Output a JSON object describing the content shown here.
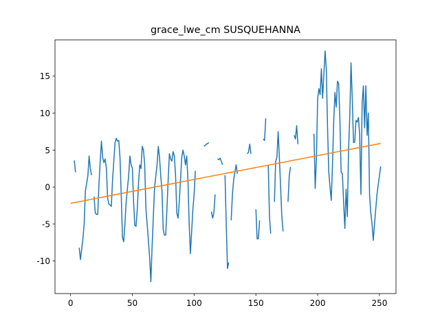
{
  "chart_data": {
    "type": "line",
    "title": "grace_lwe_cm SUSQUEHANNA",
    "xlim": [
      -12.6,
      263.4
    ],
    "ylim": [
      -14.4,
      19.9
    ],
    "xticks": [
      0,
      50,
      100,
      150,
      200,
      250
    ],
    "yticks": [
      -10,
      -5,
      0,
      5,
      10,
      15
    ],
    "series": [
      {
        "color": "#1f77b4",
        "x": [
          3,
          4,
          5,
          7,
          8,
          10,
          11,
          12,
          14,
          15,
          16,
          17,
          18,
          19,
          20,
          21,
          22,
          23,
          24,
          25,
          26,
          27,
          28,
          29,
          30,
          31,
          33,
          34,
          35,
          36,
          37,
          38,
          39,
          40,
          41,
          42,
          43,
          44,
          45,
          47,
          48,
          49,
          50,
          51,
          52,
          53,
          54,
          55,
          56,
          57,
          58,
          59,
          60,
          61,
          62,
          64,
          65,
          66,
          67,
          68,
          70,
          71,
          72,
          73,
          74,
          75,
          76,
          77,
          78,
          79,
          80,
          81,
          82,
          83,
          84,
          85,
          86,
          87,
          88,
          89,
          90,
          91,
          92,
          93,
          94,
          95,
          96,
          97,
          98,
          99,
          100,
          101,
          104,
          108,
          110,
          112,
          113,
          114,
          115,
          116,
          117,
          118,
          119,
          120,
          121,
          122,
          123,
          124,
          125,
          126,
          127,
          128,
          129,
          130,
          131,
          132,
          133,
          134,
          135,
          140,
          143,
          144,
          145,
          146,
          148,
          150,
          151,
          152,
          153,
          154,
          156,
          157,
          158,
          159,
          160,
          161,
          162,
          163,
          165,
          166,
          167,
          168,
          169,
          170,
          171,
          172,
          174,
          176,
          177,
          178,
          179,
          181,
          182,
          183,
          184,
          190,
          197,
          198,
          199,
          200,
          201,
          202,
          203,
          204,
          206,
          207,
          208,
          209,
          210,
          211,
          212,
          213,
          214,
          215,
          216,
          217,
          218,
          219,
          220,
          221,
          222,
          223,
          224,
          225,
          226,
          227,
          228,
          229,
          230,
          231,
          232,
          233,
          234,
          235,
          236,
          237,
          238,
          239,
          240,
          241,
          242,
          243,
          244,
          245,
          246,
          248,
          251
        ],
        "values": [
          3.6,
          2.0,
          null,
          -8.2,
          -9.8,
          -7,
          -5,
          -0.5,
          1.5,
          4.2,
          2.5,
          1.6,
          null,
          -1.3,
          -3.5,
          -3.7,
          -3.7,
          0.5,
          3.5,
          6.2,
          4,
          3.3,
          3.8,
          2.5,
          -1.5,
          -2.3,
          -2.6,
          1,
          3.5,
          6,
          6.6,
          6.2,
          6.3,
          4,
          -1,
          -6.8,
          -7.4,
          -5,
          -2,
          1.5,
          4.2,
          3,
          2.6,
          -2,
          -5.2,
          -5.3,
          -3,
          0.5,
          3,
          2.5,
          5.5,
          5,
          3,
          -3,
          -5,
          -9.5,
          -12.8,
          -8,
          -4,
          0,
          3,
          5.5,
          4,
          1.5,
          -0.5,
          -5.8,
          -6.5,
          -6.5,
          -3,
          1,
          4.5,
          3.8,
          3.5,
          4.8,
          4.2,
          1.5,
          -3.5,
          -4.2,
          -2,
          1,
          4,
          5,
          4.2,
          3,
          4.2,
          1,
          -5,
          -9,
          -6,
          -3,
          -1,
          2.2,
          null,
          5.5,
          5.8,
          6,
          null,
          -3.3,
          -4.2,
          -3.5,
          -1,
          null,
          3.8,
          3.7,
          3.9,
          3.5,
          3,
          null,
          1.6,
          -5,
          -11,
          -10.2,
          null,
          -4.5,
          -1,
          1,
          2,
          3,
          1.8,
          null,
          4.5,
          4.7,
          5.8,
          4.5,
          null,
          -3,
          -7,
          -7,
          -4.5,
          null,
          6.5,
          6.3,
          9.3,
          null,
          3,
          -4,
          -6.3,
          null,
          -2,
          3.5,
          4,
          7.5,
          4,
          0,
          -4,
          -6,
          null,
          -2,
          1.5,
          2.7,
          null,
          7,
          6.5,
          8.3,
          5.8,
          null,
          7.2,
          -0.2,
          4,
          12,
          13.3,
          12.5,
          16,
          12,
          18.4,
          16,
          8,
          2,
          0,
          -1.8,
          3,
          9,
          12.8,
          10.8,
          14.3,
          14,
          9,
          2,
          1.8,
          -2,
          -5.6,
          -0.3,
          -4,
          5,
          9.7,
          16.8,
          12,
          6,
          6.1,
          9,
          8.8,
          9.4,
          7,
          -1,
          11.4,
          13.7,
          8,
          13.7,
          7,
          10,
          -1,
          -3.5,
          -5,
          -7.2,
          -5,
          -1,
          2.8
        ]
      },
      {
        "color": "#ff7f0e",
        "x": [
          0,
          251
        ],
        "values": [
          -2.2,
          5.9
        ]
      }
    ]
  }
}
